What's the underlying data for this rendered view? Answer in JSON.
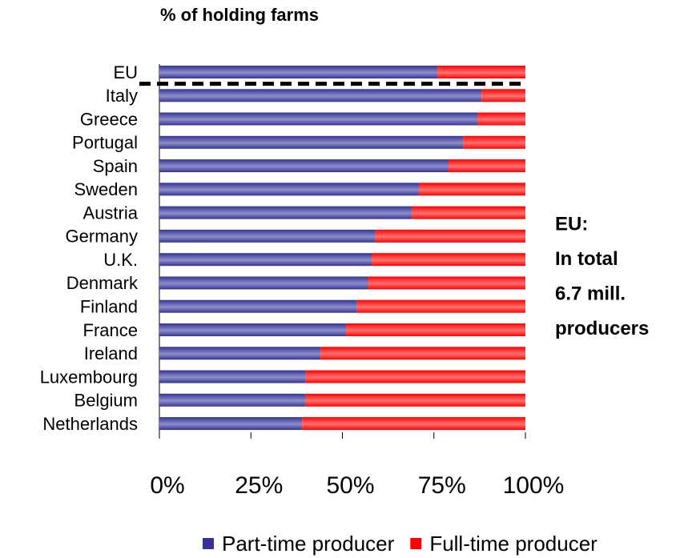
{
  "chart_data": {
    "type": "stacked-barh",
    "title": "% of holding farms",
    "categories": [
      "EU",
      "Italy",
      "Greece",
      "Portugal",
      "Spain",
      "Sweden",
      "Austria",
      "Germany",
      "U.K.",
      "Denmark",
      "Finland",
      "France",
      "Ireland",
      "Luxembourg",
      "Belgium",
      "Netherlands"
    ],
    "series": [
      {
        "name": "Part-time producer",
        "color": "#333399",
        "values": [
          76,
          88,
          87,
          83,
          79,
          71,
          69,
          59,
          58,
          57,
          54,
          51,
          44,
          40,
          40,
          39
        ]
      },
      {
        "name": "Full-time producer",
        "color": "#ff0000",
        "values": [
          24,
          12,
          13,
          17,
          21,
          29,
          31,
          41,
          42,
          43,
          46,
          49,
          56,
          60,
          60,
          61
        ]
      }
    ],
    "xlim": [
      0,
      100
    ],
    "xticks": [
      {
        "value": 0,
        "label": "0%"
      },
      {
        "value": 25,
        "label": "25%"
      },
      {
        "value": 50,
        "label": "50%"
      },
      {
        "value": 75,
        "label": "75%"
      },
      {
        "value": 100,
        "label": "100%"
      }
    ],
    "annotation": [
      "EU:",
      "In total",
      "6.7 mill.",
      "producers"
    ],
    "legend": "bottom"
  }
}
